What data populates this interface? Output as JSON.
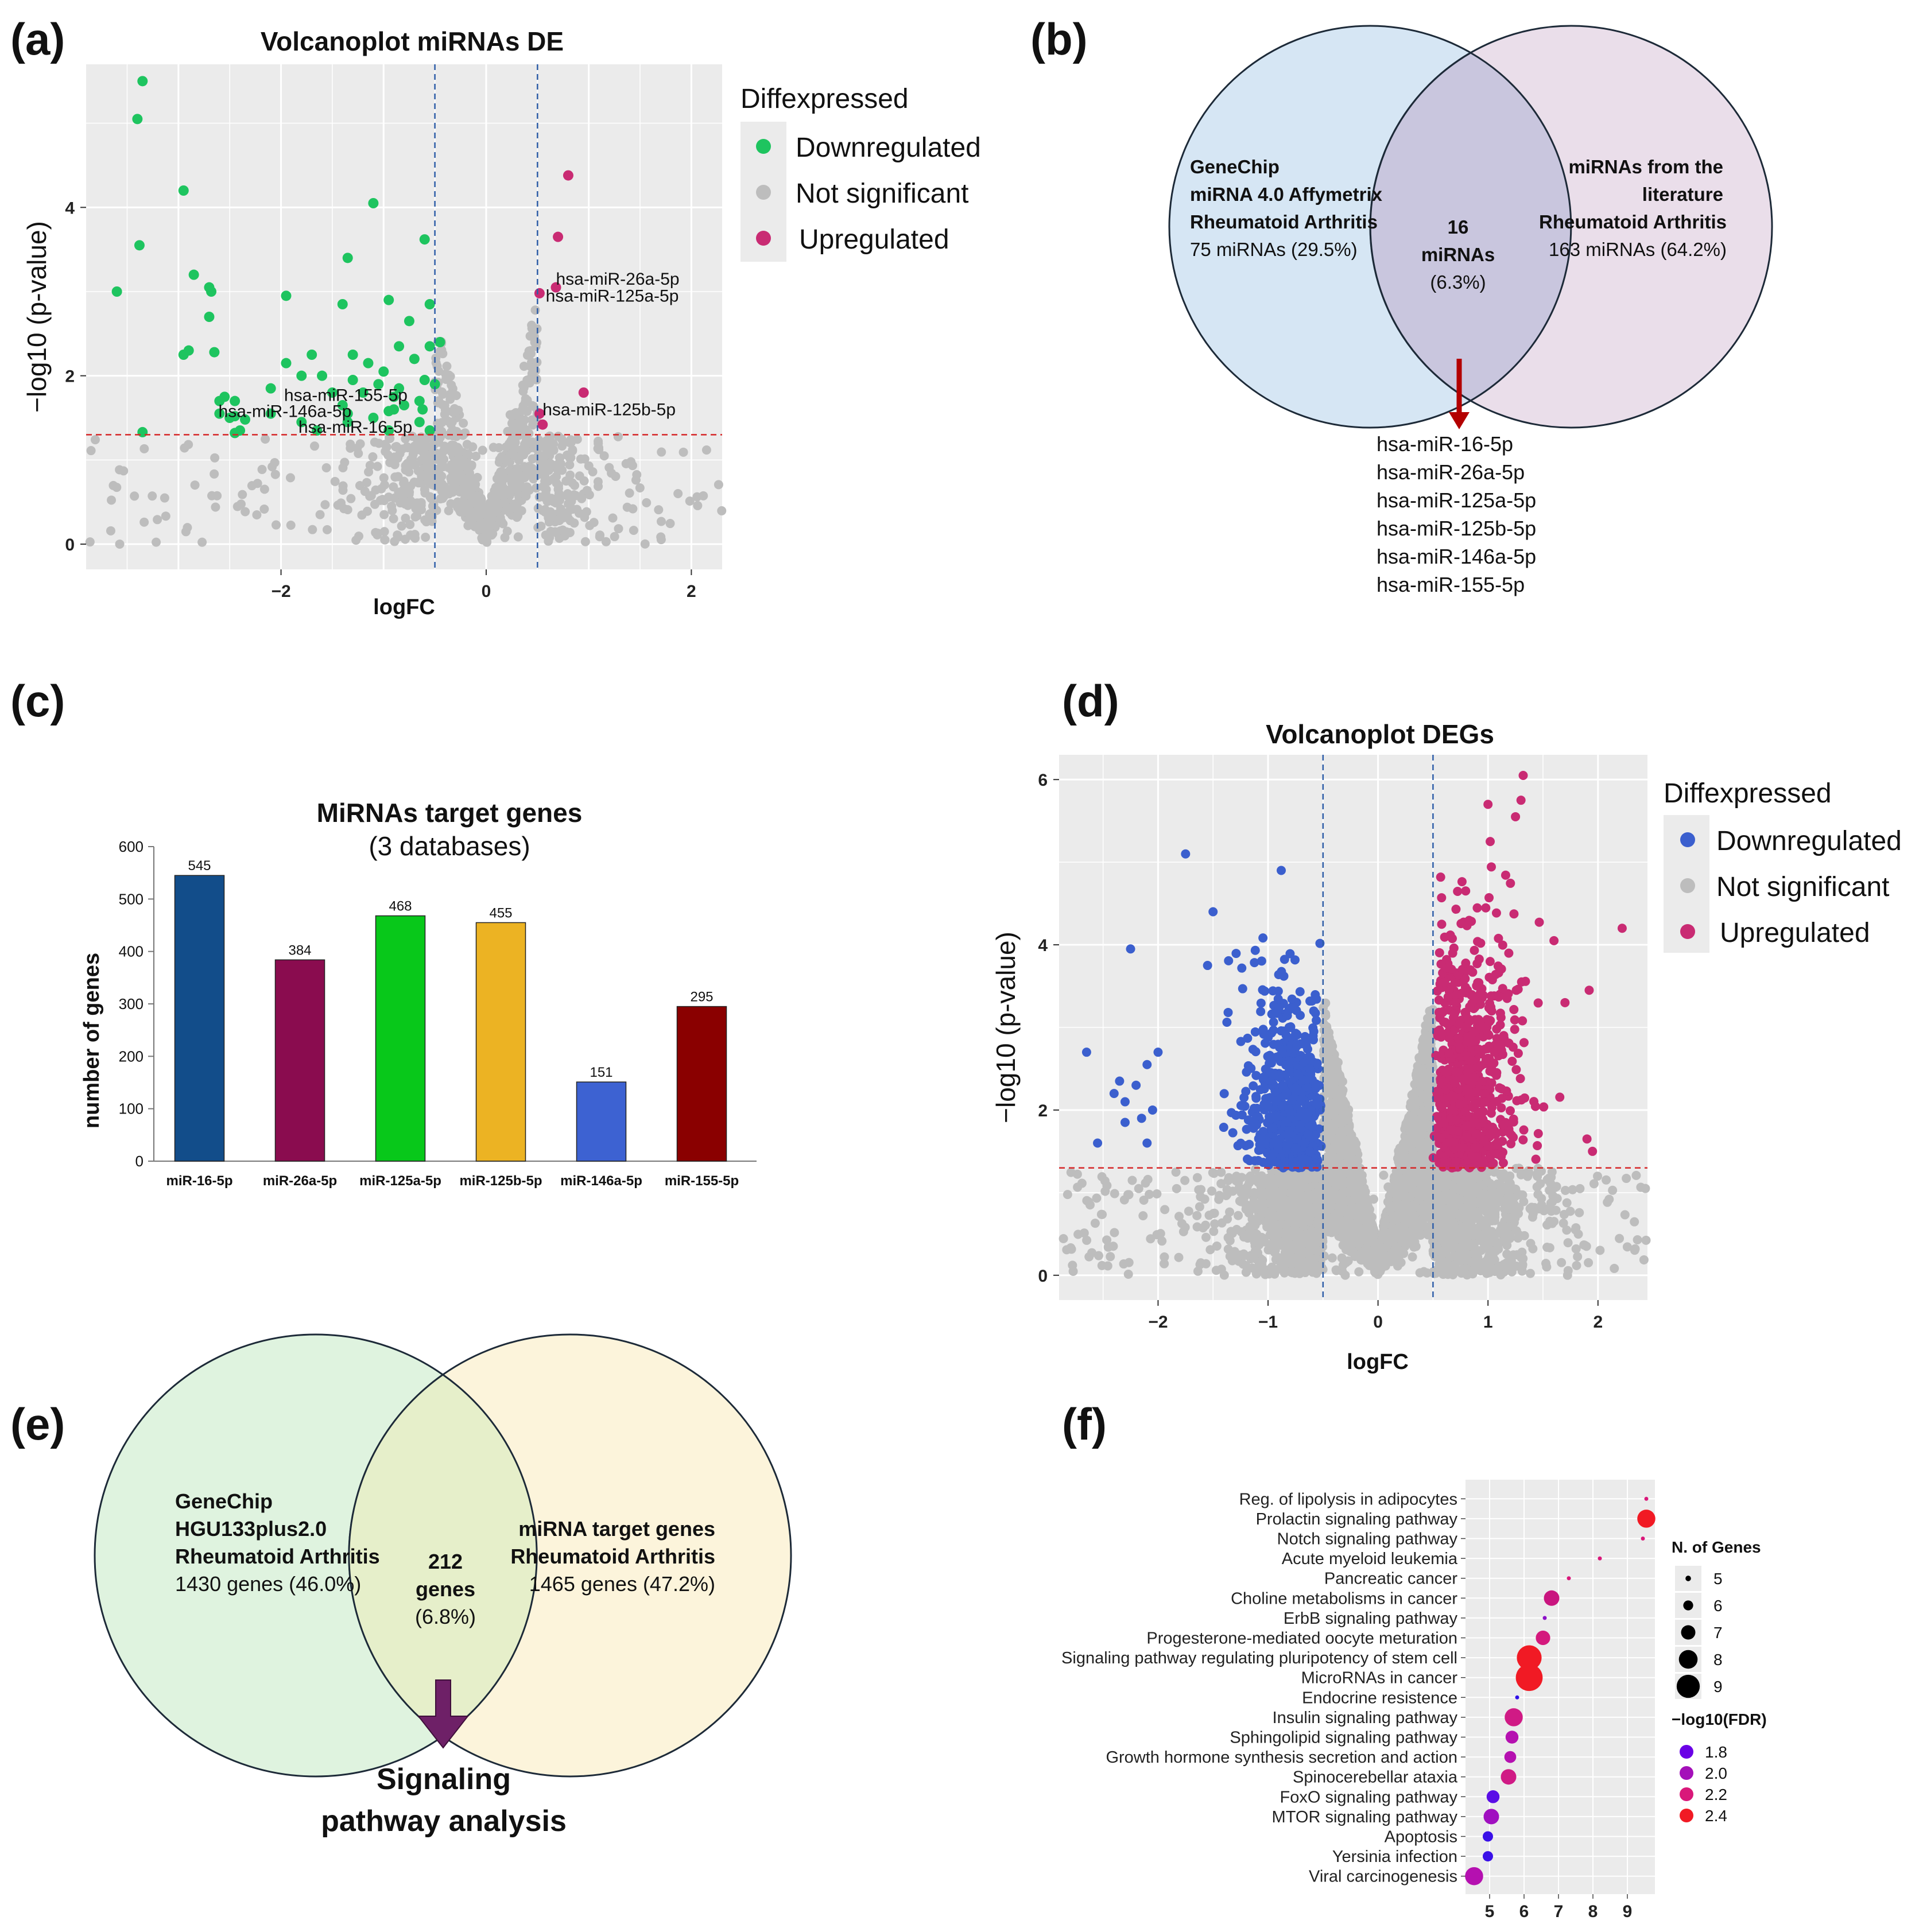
{
  "colors": {
    "down_green": "#1ec45f",
    "down_blue": "#3b5fce",
    "not_sig": "#bdbdbd",
    "up": "#c92b73",
    "panel_bg": "#ebebeb",
    "threshold_red": "#d62728",
    "threshold_blue": "#2f5ea8",
    "venn_b_left": "#d6e6f4",
    "venn_b_right": "#e6d8e6",
    "venn_e_left": "#dff3df",
    "venn_e_right": "#fcf3d6",
    "arrow_red": "#b30000",
    "arrow_purple": "#6e2067"
  },
  "panels": {
    "a": {
      "letter": "(a)",
      "title": "Volcanoplot miRNAs DE",
      "xlabel": "logFC",
      "ylabel": "−log10 (p-value)",
      "legend_title": "Diffexpressed",
      "legend": [
        "Downregulated",
        "Not significant",
        "Upregulated"
      ],
      "annotations": [
        "hsa-miR-26a-5p",
        "hsa-miR-125a-5p",
        "hsa-miR-125b-5p",
        "hsa-miR-155-5p",
        "hsa-miR-146a-5p",
        "hsa-miR-16-5p"
      ]
    },
    "b": {
      "letter": "(b)",
      "left_bold": [
        "GeneChip",
        "miRNA 4.0 Affymetrix",
        "Rheumatoid Arthritis"
      ],
      "left_count": "75 miRNAs (29.5%)",
      "center_bold": [
        "16",
        "miRNAs"
      ],
      "center_pct": "(6.3%)",
      "right_bold": [
        "miRNAs from the",
        "literature",
        "Rheumatoid Arthritis"
      ],
      "right_count": "163 miRNAs (64.2%)",
      "mirna_list": [
        "hsa-miR-16-5p",
        "hsa-miR-26a-5p",
        "hsa-miR-125a-5p",
        "hsa-miR-125b-5p",
        "hsa-miR-146a-5p",
        "hsa-miR-155-5p"
      ]
    },
    "c": {
      "letter": "(c)",
      "title": "MiRNAs target genes",
      "subtitle": "(3 databases)",
      "ylabel": "number of genes"
    },
    "d": {
      "letter": "(d)",
      "title": "Volcanoplot DEGs",
      "xlabel": "logFC",
      "ylabel": "−log10 (p-value)",
      "legend_title": "Diffexpressed",
      "legend": [
        "Downregulated",
        "Not significant",
        "Upregulated"
      ]
    },
    "e": {
      "letter": "(e)",
      "left_bold": [
        "GeneChip",
        "HGU133plus2.0",
        "Rheumatoid Arthritis"
      ],
      "left_count": "1430 genes (46.0%)",
      "center_bold": [
        "212",
        "genes"
      ],
      "center_pct": "(6.8%)",
      "right_bold": [
        "miRNA target genes",
        "Rheumatoid Arthritis"
      ],
      "right_count": "1465 genes (47.2%)",
      "arrow_caption": [
        "Signaling",
        "pathway analysis"
      ]
    },
    "f": {
      "letter": "(f)",
      "size_legend_title": "N. of Genes",
      "color_legend_title": "−log10(FDR)"
    }
  },
  "chart_data": [
    {
      "id": "a",
      "type": "scatter",
      "title": "Volcanoplot miRNAs DE",
      "xlabel": "logFC",
      "ylabel": "−log10 (p-value)",
      "xlim": [
        -3.9,
        2.3
      ],
      "ylim": [
        -0.3,
        5.7
      ],
      "xticks": [
        -2,
        0,
        2
      ],
      "yticks": [
        0,
        2,
        4
      ],
      "grid": true,
      "legend_position": "right",
      "thresholds": {
        "logFC": [
          -0.5,
          0.5
        ],
        "neglog10p": 1.3
      },
      "series": [
        {
          "name": "Downregulated",
          "points": [
            [
              -3.35,
              5.5
            ],
            [
              -3.4,
              5.05
            ],
            [
              -2.95,
              4.2
            ],
            [
              -1.1,
              4.05
            ],
            [
              -3.38,
              3.55
            ],
            [
              -0.6,
              3.62
            ],
            [
              -1.35,
              3.4
            ],
            [
              -2.85,
              3.2
            ],
            [
              -2.7,
              3.05
            ],
            [
              -3.6,
              3.0
            ],
            [
              -2.68,
              3.0
            ],
            [
              -1.95,
              2.95
            ],
            [
              -0.95,
              2.9
            ],
            [
              -1.4,
              2.85
            ],
            [
              -0.55,
              2.85
            ],
            [
              -2.7,
              2.7
            ],
            [
              -0.75,
              2.65
            ],
            [
              -2.9,
              2.3
            ],
            [
              -2.95,
              2.25
            ],
            [
              -2.65,
              2.28
            ],
            [
              -1.7,
              2.25
            ],
            [
              -1.95,
              2.15
            ],
            [
              -1.3,
              2.25
            ],
            [
              -0.85,
              2.35
            ],
            [
              -0.55,
              2.35
            ],
            [
              -0.45,
              2.4
            ],
            [
              -1.15,
              2.15
            ],
            [
              -1.0,
              2.05
            ],
            [
              -0.7,
              2.2
            ],
            [
              -1.8,
              2.0
            ],
            [
              -1.6,
              2.0
            ],
            [
              -1.3,
              1.95
            ],
            [
              -1.5,
              1.8
            ],
            [
              -1.05,
              1.9
            ],
            [
              -0.85,
              1.85
            ],
            [
              -0.6,
              1.95
            ],
            [
              -0.5,
              1.9
            ],
            [
              -2.1,
              1.85
            ],
            [
              -2.55,
              1.75
            ],
            [
              -2.45,
              1.7
            ],
            [
              -2.6,
              1.7
            ],
            [
              -1.2,
              1.8
            ],
            [
              -0.9,
              1.75
            ],
            [
              -0.65,
              1.7
            ],
            [
              -1.4,
              1.65
            ],
            [
              -0.8,
              1.65
            ],
            [
              -2.6,
              1.55
            ],
            [
              -2.45,
              1.52
            ],
            [
              -2.1,
              1.55
            ],
            [
              -1.35,
              1.55
            ],
            [
              -0.9,
              1.6
            ],
            [
              -0.95,
              1.58
            ],
            [
              -0.62,
              1.6
            ],
            [
              -2.5,
              1.5
            ],
            [
              -2.35,
              1.48
            ],
            [
              -1.8,
              1.45
            ],
            [
              -1.35,
              1.45
            ],
            [
              -1.1,
              1.5
            ],
            [
              -0.65,
              1.45
            ],
            [
              -2.4,
              1.35
            ],
            [
              -1.65,
              1.35
            ],
            [
              -0.95,
              1.35
            ],
            [
              -0.55,
              1.35
            ],
            [
              -3.35,
              1.33
            ],
            [
              -2.45,
              1.32
            ]
          ]
        },
        {
          "name": "Not significant",
          "generated": true
        },
        {
          "name": "Upregulated",
          "points": [
            [
              0.8,
              4.38
            ],
            [
              0.7,
              3.65
            ],
            [
              0.68,
              3.05
            ],
            [
              0.52,
              2.98
            ],
            [
              0.95,
              1.8
            ],
            [
              0.52,
              1.55
            ],
            [
              0.55,
              1.42
            ]
          ]
        }
      ],
      "annotations": [
        {
          "text": "hsa-miR-26a-5p",
          "x": 0.68,
          "y": 3.15
        },
        {
          "text": "hsa-miR-125a-5p",
          "x": 0.58,
          "y": 2.95
        },
        {
          "text": "hsa-miR-125b-5p",
          "x": 0.55,
          "y": 1.6
        },
        {
          "text": "hsa-miR-155-5p",
          "x": -1.97,
          "y": 1.77
        },
        {
          "text": "hsa-miR-146a-5p",
          "x": -2.61,
          "y": 1.58
        },
        {
          "text": "hsa-miR-16-5p",
          "x": -1.83,
          "y": 1.39
        }
      ]
    },
    {
      "id": "c",
      "type": "bar",
      "title": "MiRNAs target genes",
      "subtitle": "(3 databases)",
      "xlabel": "",
      "ylabel": "number of genes",
      "ylim": [
        0,
        600
      ],
      "yticks": [
        0,
        100,
        200,
        300,
        400,
        500,
        600
      ],
      "categories": [
        "miR-16-5p",
        "miR-26a-5p",
        "miR-125a-5p",
        "miR-125b-5p",
        "miR-146a-5p",
        "miR-155-5p"
      ],
      "values": [
        545,
        384,
        468,
        455,
        151,
        295
      ],
      "bar_colors": [
        "#124d8a",
        "#8a0c4f",
        "#08c81a",
        "#ecb323",
        "#3d62d2",
        "#8a0000"
      ],
      "labels": [
        "545",
        "384",
        "468",
        "455",
        "151",
        "295"
      ]
    },
    {
      "id": "d",
      "type": "scatter",
      "title": "Volcanoplot DEGs",
      "xlabel": "logFC",
      "ylabel": "−log10 (p-value)",
      "xlim": [
        -2.9,
        2.45
      ],
      "ylim": [
        -0.3,
        6.3
      ],
      "xticks": [
        -2,
        -1,
        0,
        1,
        2
      ],
      "yticks": [
        0,
        2,
        4,
        6
      ],
      "grid": true,
      "legend_position": "right",
      "thresholds": {
        "logFC": [
          -0.5,
          0.5
        ],
        "neglog10p": 1.3
      },
      "series": [
        {
          "name": "Downregulated",
          "generated": true,
          "highlight_points": [
            [
              -1.75,
              5.1
            ],
            [
              -0.88,
              4.9
            ],
            [
              -1.5,
              4.4
            ],
            [
              -2.25,
              3.95
            ],
            [
              -1.55,
              3.75
            ],
            [
              -2.65,
              2.7
            ],
            [
              -2.0,
              2.7
            ],
            [
              -2.1,
              2.55
            ],
            [
              -2.35,
              2.35
            ],
            [
              -2.2,
              2.3
            ],
            [
              -2.4,
              2.2
            ],
            [
              -2.3,
              2.1
            ],
            [
              -2.05,
              2.0
            ],
            [
              -2.15,
              1.9
            ],
            [
              -2.3,
              1.85
            ],
            [
              -2.55,
              1.6
            ],
            [
              -2.1,
              1.6
            ]
          ]
        },
        {
          "name": "Not significant",
          "generated": true
        },
        {
          "name": "Upregulated",
          "generated": true,
          "highlight_points": [
            [
              1.32,
              6.05
            ],
            [
              1.3,
              5.75
            ],
            [
              1.0,
              5.7
            ],
            [
              1.25,
              5.55
            ],
            [
              1.02,
              5.25
            ],
            [
              2.22,
              4.2
            ],
            [
              1.6,
              4.05
            ],
            [
              1.92,
              3.45
            ],
            [
              1.7,
              3.3
            ],
            [
              1.9,
              1.65
            ],
            [
              1.95,
              1.5
            ]
          ]
        }
      ]
    },
    {
      "id": "f",
      "type": "scatter",
      "chart_kind": "bubble",
      "xlim": [
        4.3,
        9.8
      ],
      "xticks": [
        5,
        6,
        7,
        8,
        9
      ],
      "size_legend": [
        5,
        6,
        7,
        8,
        9
      ],
      "color_legend": [
        {
          "label": "1.8",
          "color": "#6a00e6"
        },
        {
          "label": "2.0",
          "color": "#a410b9"
        },
        {
          "label": "2.2",
          "color": "#d9187a"
        },
        {
          "label": "2.4",
          "color": "#f11a24"
        }
      ],
      "categories": [
        "Reg. of lipolysis in adipocytes",
        "Prolactin signaling pathway",
        "Notch signaling pathway",
        "Acute myeloid leukemia",
        "Pancreatic cancer",
        "Choline metabolisms in cancer",
        "ErbB signaling pathway",
        "Progesterone-mediated oocyte meturation",
        "Signaling pathway regulating pluripotency of stem cell",
        "MicroRNAs in cancer",
        "Endocrine resistence",
        "Insulin signaling pathway",
        "Sphingolipid signaling pathway",
        "Growth hormone synthesis secretion and action",
        "Spinocerebellar ataxia",
        "FoxO signaling pathway",
        "MTOR signaling pathway",
        "Apoptosis",
        "Yersinia infection",
        "Viral carcinogenesis"
      ],
      "x": [
        9.55,
        9.55,
        9.45,
        8.2,
        7.3,
        6.8,
        6.6,
        6.55,
        6.15,
        6.15,
        5.8,
        5.7,
        5.65,
        5.6,
        5.55,
        5.1,
        5.05,
        4.95,
        4.95,
        4.55
      ],
      "n_genes": [
        4.5,
        7.5,
        4.5,
        4.5,
        4.5,
        7.0,
        4.5,
        6.8,
        8.8,
        9.2,
        4.5,
        7.5,
        6.5,
        6.3,
        7.0,
        6.5,
        7.0,
        6.0,
        6.0,
        7.5
      ],
      "neglog10_fdr_color": [
        "#d9187a",
        "#f11a24",
        "#d9187a",
        "#d9187a",
        "#d9187a",
        "#c9157f",
        "#8c10c8",
        "#d4197d",
        "#f11a24",
        "#f11a24",
        "#3010e8",
        "#d01a85",
        "#b510b0",
        "#b510b0",
        "#d01a85",
        "#5a0ee6",
        "#a010c0",
        "#3a10e8",
        "#3a10e8",
        "#b510b0"
      ]
    }
  ]
}
